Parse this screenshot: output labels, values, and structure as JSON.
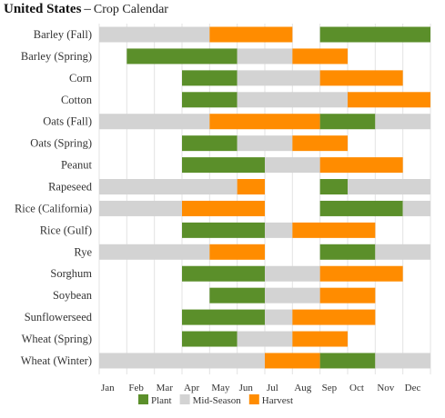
{
  "header": {
    "country": "United States",
    "separator": "–",
    "subtitle": "Crop Calendar"
  },
  "colors": {
    "plant": "#5b8f2a",
    "mid": "#d3d3d3",
    "harvest": "#ff8c00",
    "grid": "#e3e3e3"
  },
  "chart_data": {
    "type": "bar",
    "orientation": "horizontal-timeline",
    "x_unit": "month",
    "xlim": [
      0,
      12
    ],
    "months": [
      "Jan",
      "Feb",
      "Mar",
      "Apr",
      "May",
      "Jun",
      "Jul",
      "Aug",
      "Sep",
      "Oct",
      "Nov",
      "Dec"
    ],
    "legend": [
      {
        "key": "plant",
        "label": "Plant"
      },
      {
        "key": "mid",
        "label": "Mid-Season"
      },
      {
        "key": "harvest",
        "label": "Harvest"
      }
    ],
    "legend_position": "bottom",
    "grid": true,
    "crops": [
      {
        "name": "Barley (Fall)",
        "segments": [
          {
            "phase": "mid",
            "start": 0,
            "end": 4
          },
          {
            "phase": "harvest",
            "start": 4,
            "end": 7
          },
          {
            "phase": "plant",
            "start": 8,
            "end": 12
          }
        ]
      },
      {
        "name": "Barley (Spring)",
        "segments": [
          {
            "phase": "plant",
            "start": 1,
            "end": 5
          },
          {
            "phase": "mid",
            "start": 5,
            "end": 7
          },
          {
            "phase": "harvest",
            "start": 7,
            "end": 9
          }
        ]
      },
      {
        "name": "Corn",
        "segments": [
          {
            "phase": "plant",
            "start": 3,
            "end": 5
          },
          {
            "phase": "mid",
            "start": 5,
            "end": 8
          },
          {
            "phase": "harvest",
            "start": 8,
            "end": 11
          }
        ]
      },
      {
        "name": "Cotton",
        "segments": [
          {
            "phase": "plant",
            "start": 3,
            "end": 5
          },
          {
            "phase": "mid",
            "start": 5,
            "end": 9
          },
          {
            "phase": "harvest",
            "start": 9,
            "end": 12
          }
        ]
      },
      {
        "name": "Oats (Fall)",
        "segments": [
          {
            "phase": "mid",
            "start": 0,
            "end": 4
          },
          {
            "phase": "harvest",
            "start": 4,
            "end": 8
          },
          {
            "phase": "plant",
            "start": 8,
            "end": 10
          },
          {
            "phase": "mid",
            "start": 10,
            "end": 12
          }
        ]
      },
      {
        "name": "Oats (Spring)",
        "segments": [
          {
            "phase": "plant",
            "start": 3,
            "end": 5
          },
          {
            "phase": "mid",
            "start": 5,
            "end": 7
          },
          {
            "phase": "harvest",
            "start": 7,
            "end": 9
          }
        ]
      },
      {
        "name": "Peanut",
        "segments": [
          {
            "phase": "plant",
            "start": 3,
            "end": 6
          },
          {
            "phase": "mid",
            "start": 6,
            "end": 8
          },
          {
            "phase": "harvest",
            "start": 8,
            "end": 11
          }
        ]
      },
      {
        "name": "Rapeseed",
        "segments": [
          {
            "phase": "mid",
            "start": 0,
            "end": 5
          },
          {
            "phase": "harvest",
            "start": 5,
            "end": 6
          },
          {
            "phase": "plant",
            "start": 8,
            "end": 9
          },
          {
            "phase": "mid",
            "start": 9,
            "end": 12
          }
        ]
      },
      {
        "name": "Rice (California)",
        "segments": [
          {
            "phase": "mid",
            "start": 0,
            "end": 3
          },
          {
            "phase": "harvest",
            "start": 3,
            "end": 6
          },
          {
            "phase": "plant",
            "start": 8,
            "end": 11
          },
          {
            "phase": "mid",
            "start": 11,
            "end": 12
          }
        ]
      },
      {
        "name": "Rice (Gulf)",
        "segments": [
          {
            "phase": "plant",
            "start": 3,
            "end": 6
          },
          {
            "phase": "mid",
            "start": 6,
            "end": 7
          },
          {
            "phase": "harvest",
            "start": 7,
            "end": 10
          }
        ]
      },
      {
        "name": "Rye",
        "segments": [
          {
            "phase": "mid",
            "start": 0,
            "end": 4
          },
          {
            "phase": "harvest",
            "start": 4,
            "end": 6
          },
          {
            "phase": "plant",
            "start": 8,
            "end": 10
          },
          {
            "phase": "mid",
            "start": 10,
            "end": 12
          }
        ]
      },
      {
        "name": "Sorghum",
        "segments": [
          {
            "phase": "plant",
            "start": 3,
            "end": 6
          },
          {
            "phase": "mid",
            "start": 6,
            "end": 8
          },
          {
            "phase": "harvest",
            "start": 8,
            "end": 11
          }
        ]
      },
      {
        "name": "Soybean",
        "segments": [
          {
            "phase": "plant",
            "start": 4,
            "end": 6
          },
          {
            "phase": "mid",
            "start": 6,
            "end": 8
          },
          {
            "phase": "harvest",
            "start": 8,
            "end": 10
          }
        ]
      },
      {
        "name": "Sunflowerseed",
        "segments": [
          {
            "phase": "plant",
            "start": 3,
            "end": 6
          },
          {
            "phase": "mid",
            "start": 6,
            "end": 7
          },
          {
            "phase": "harvest",
            "start": 7,
            "end": 10
          }
        ]
      },
      {
        "name": "Wheat (Spring)",
        "segments": [
          {
            "phase": "plant",
            "start": 3,
            "end": 5
          },
          {
            "phase": "mid",
            "start": 5,
            "end": 7
          },
          {
            "phase": "harvest",
            "start": 7,
            "end": 9
          }
        ]
      },
      {
        "name": "Wheat (Winter)",
        "segments": [
          {
            "phase": "mid",
            "start": 0,
            "end": 6
          },
          {
            "phase": "harvest",
            "start": 6,
            "end": 8
          },
          {
            "phase": "plant",
            "start": 8,
            "end": 10
          },
          {
            "phase": "mid",
            "start": 10,
            "end": 12
          }
        ]
      }
    ]
  }
}
